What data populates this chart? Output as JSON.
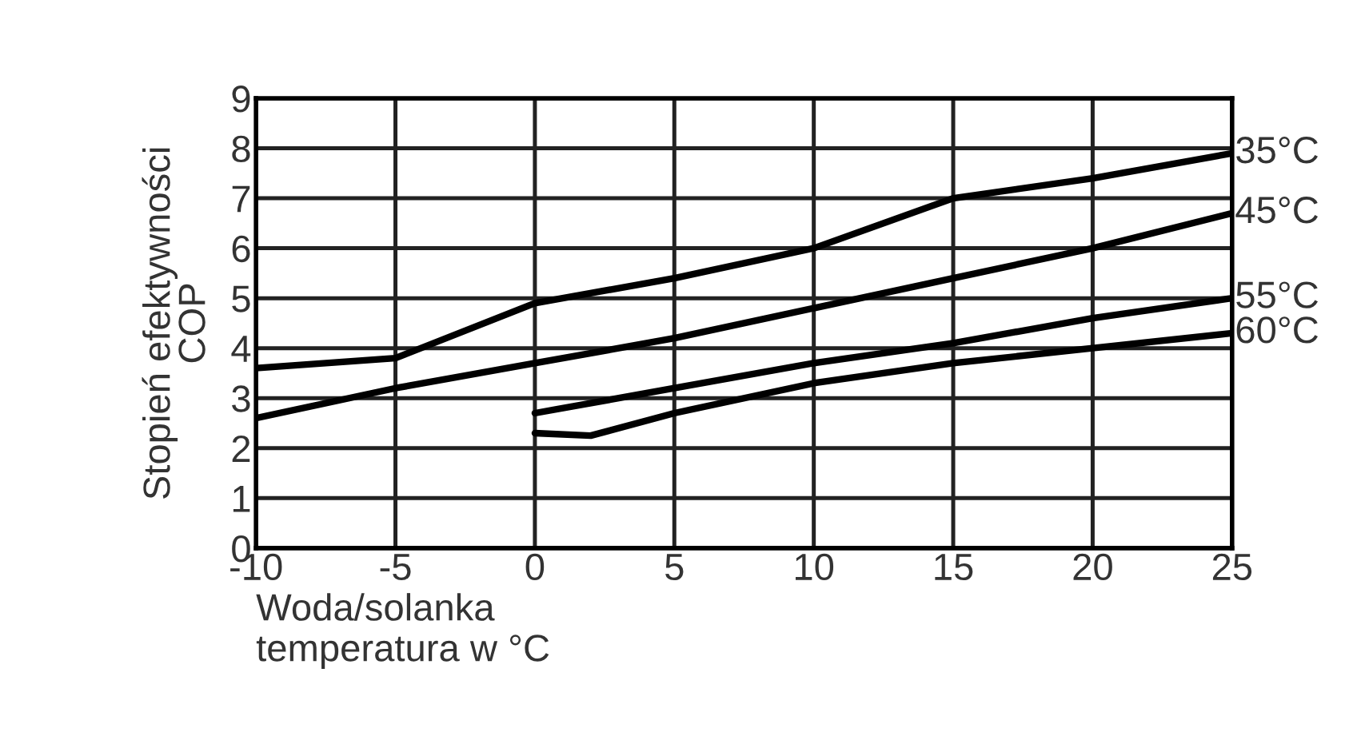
{
  "chart_data": {
    "type": "line",
    "xlabel": "Woda/solanka\ntemperatura w °C",
    "ylabel": "Stopień efektywności\nCOP",
    "xlim": [
      -10,
      25
    ],
    "xticks": [
      -10,
      -5,
      0,
      5,
      10,
      15,
      20,
      25
    ],
    "ylim": [
      0,
      9
    ],
    "yticks": [
      0,
      1,
      2,
      3,
      4,
      5,
      6,
      7,
      8,
      9
    ],
    "grid": true,
    "legend": false,
    "marker": "none",
    "line_style": "solid",
    "series": [
      {
        "name": "35°C",
        "color": "#000000",
        "x": [
          -10,
          -5,
          0,
          5,
          10,
          15,
          20,
          25
        ],
        "values": [
          3.6,
          3.8,
          4.9,
          5.4,
          6.0,
          7.0,
          7.4,
          7.9
        ]
      },
      {
        "name": "45°C",
        "color": "#000000",
        "x": [
          -10,
          -5,
          0,
          5,
          10,
          15,
          20,
          25
        ],
        "values": [
          2.6,
          3.2,
          3.7,
          4.2,
          4.8,
          5.4,
          6.0,
          6.7
        ]
      },
      {
        "name": "55°C",
        "color": "#000000",
        "x": [
          0,
          5,
          10,
          15,
          20,
          25
        ],
        "values": [
          2.7,
          3.2,
          3.7,
          4.1,
          4.6,
          5.0
        ]
      },
      {
        "name": "60°C",
        "color": "#000000",
        "x": [
          0,
          2,
          5,
          10,
          15,
          20,
          25
        ],
        "values": [
          2.3,
          2.25,
          2.7,
          3.3,
          3.7,
          4.0,
          4.3
        ]
      }
    ]
  }
}
